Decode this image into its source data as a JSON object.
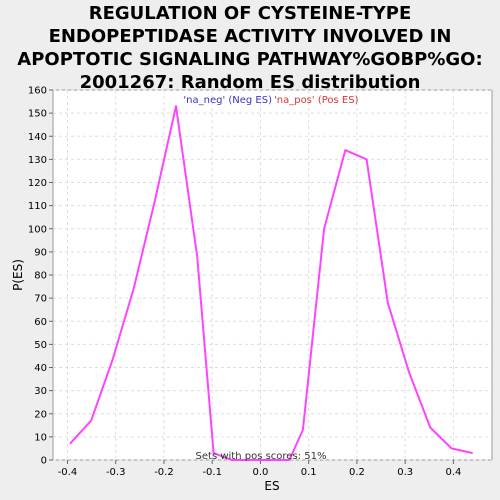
{
  "chart_data": {
    "type": "line",
    "title": "REGULATION OF CYSTEINE-TYPE ENDOPEPTIDASE ACTIVITY INVOLVED IN APOPTOTIC SIGNALING PATHWAY%GOBP%GO: 2001267: Random ES distribution",
    "title_lines": [
      "REGULATION OF CYSTEINE-TYPE",
      "ENDOPEPTIDASE ACTIVITY INVOLVED IN",
      "APOPTOTIC SIGNALING PATHWAY%GOBP%GO:",
      "2001267: Random ES distribution"
    ],
    "xlabel": "ES",
    "ylabel": "P(ES)",
    "xlim": [
      -0.43,
      0.48
    ],
    "ylim": [
      0,
      160
    ],
    "xticks": [
      -0.4,
      -0.3,
      -0.2,
      -0.1,
      0.0,
      0.1,
      0.2,
      0.3,
      0.4
    ],
    "xtick_labels": [
      "-0.4",
      "-0.3",
      "-0.2",
      "-0.1",
      "0.0",
      "0.1",
      "0.2",
      "0.3",
      "0.4"
    ],
    "yticks": [
      0,
      10,
      20,
      30,
      40,
      50,
      60,
      70,
      80,
      90,
      100,
      110,
      120,
      130,
      140,
      150,
      160
    ],
    "grid": true,
    "legend_position": "top-center",
    "legend": [
      {
        "label": "'na_neg' (Neg ES)",
        "color": "#3333cc"
      },
      {
        "label": "'na_pos' (Pos ES)",
        "color": "#dd3333"
      }
    ],
    "annotation": "Sets with pos scores: 51%",
    "series": [
      {
        "color": "#ff44ff",
        "x": [
          -0.395,
          -0.351,
          -0.307,
          -0.263,
          -0.219,
          -0.175,
          -0.131,
          -0.097,
          -0.06,
          -0.02,
          0.02,
          0.06,
          0.088,
          0.132,
          0.176,
          0.22,
          0.264,
          0.308,
          0.352,
          0.396,
          0.44
        ],
        "y": [
          7,
          17,
          43,
          74,
          112,
          153,
          88,
          3,
          0,
          0,
          0,
          0,
          13,
          100,
          134,
          130,
          68,
          38,
          14,
          5,
          3
        ]
      }
    ]
  }
}
